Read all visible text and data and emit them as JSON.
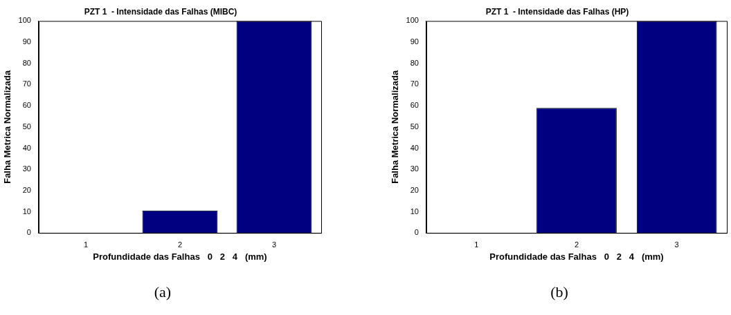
{
  "chart_data": [
    {
      "type": "bar",
      "title": "PZT 1  - Intensidade das Falhas (MIBC)",
      "xlabel": "Profundidade das Falhas   0   2   4   (mm)",
      "ylabel": "Falha Metrica Normalizada",
      "categories": [
        "1",
        "2",
        "3"
      ],
      "values": [
        0,
        10.6,
        100
      ],
      "color": "#000080",
      "ylim": [
        0,
        100
      ],
      "yticks": [
        0,
        10,
        20,
        30,
        40,
        50,
        60,
        70,
        80,
        90,
        100
      ],
      "grid": false,
      "annotations": [
        "(a)"
      ]
    },
    {
      "type": "bar",
      "title": "PZT 1  - Intensidade das Falhas (HP)",
      "xlabel": "Profundidade das Falhas   0   2   4   (mm)",
      "ylabel": "Falha Metrica Normalizada",
      "categories": [
        "1",
        "2",
        "3"
      ],
      "values": [
        0,
        59,
        100
      ],
      "color": "#000080",
      "ylim": [
        0,
        100
      ],
      "yticks": [
        0,
        10,
        20,
        30,
        40,
        50,
        60,
        70,
        80,
        90,
        100
      ],
      "grid": false,
      "annotations": [
        "(b)"
      ]
    }
  ]
}
